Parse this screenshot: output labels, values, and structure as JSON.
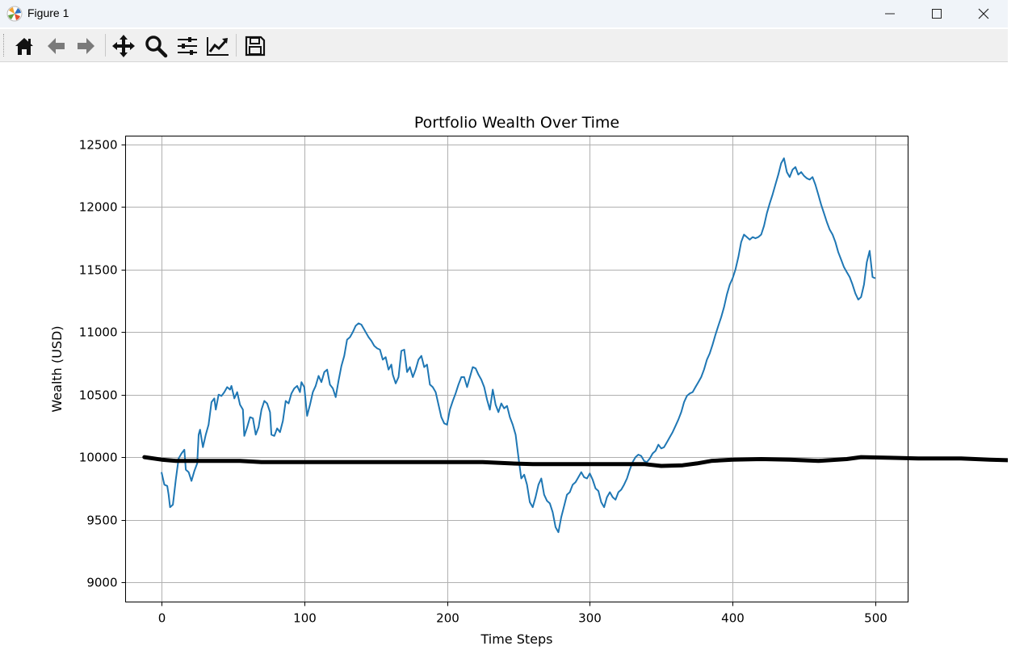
{
  "window": {
    "title": "Figure 1",
    "controls": [
      "minimize",
      "maximize",
      "close"
    ]
  },
  "toolbar": {
    "items": [
      "home-icon",
      "back-arrow-icon",
      "forward-arrow-icon",
      "pan-icon",
      "zoom-icon",
      "configure-subplots-icon",
      "edit-axis-icon",
      "save-icon"
    ]
  },
  "colors": {
    "series": "#1f77b4",
    "overlay": "#000000",
    "grid": "#b0b0b0"
  },
  "chart_data": {
    "type": "line",
    "title": "Portfolio Wealth Over Time",
    "xlabel": "Time Steps",
    "ylabel": "Wealth (USD)",
    "xlim": [
      -25,
      525
    ],
    "ylim": [
      8850,
      12570
    ],
    "xticks": [
      0,
      100,
      200,
      300,
      400,
      500
    ],
    "yticks": [
      9000,
      9500,
      10000,
      10500,
      11000,
      11500,
      12000,
      12500
    ],
    "grid": true,
    "series": [
      {
        "color": "#1f77b4",
        "anchors": [
          [
            0,
            9880
          ],
          [
            2,
            9780
          ],
          [
            4,
            9770
          ],
          [
            5,
            9700
          ],
          [
            6,
            9600
          ],
          [
            8,
            9620
          ],
          [
            10,
            9820
          ],
          [
            12,
            9990
          ],
          [
            14,
            10030
          ],
          [
            16,
            10060
          ],
          [
            17,
            9900
          ],
          [
            19,
            9880
          ],
          [
            21,
            9810
          ],
          [
            23,
            9890
          ],
          [
            25,
            9950
          ],
          [
            26,
            10180
          ],
          [
            27,
            10220
          ],
          [
            29,
            10080
          ],
          [
            31,
            10180
          ],
          [
            33,
            10260
          ],
          [
            35,
            10440
          ],
          [
            37,
            10470
          ],
          [
            38,
            10380
          ],
          [
            40,
            10500
          ],
          [
            42,
            10490
          ],
          [
            44,
            10520
          ],
          [
            46,
            10560
          ],
          [
            48,
            10540
          ],
          [
            49,
            10570
          ],
          [
            51,
            10470
          ],
          [
            53,
            10520
          ],
          [
            55,
            10420
          ],
          [
            57,
            10380
          ],
          [
            58,
            10170
          ],
          [
            60,
            10240
          ],
          [
            62,
            10320
          ],
          [
            64,
            10310
          ],
          [
            66,
            10180
          ],
          [
            68,
            10240
          ],
          [
            70,
            10380
          ],
          [
            72,
            10450
          ],
          [
            74,
            10430
          ],
          [
            76,
            10360
          ],
          [
            77,
            10180
          ],
          [
            79,
            10170
          ],
          [
            81,
            10230
          ],
          [
            83,
            10200
          ],
          [
            85,
            10290
          ],
          [
            87,
            10450
          ],
          [
            89,
            10430
          ],
          [
            91,
            10510
          ],
          [
            93,
            10550
          ],
          [
            95,
            10570
          ],
          [
            97,
            10520
          ],
          [
            98,
            10600
          ],
          [
            100,
            10560
          ],
          [
            102,
            10330
          ],
          [
            104,
            10420
          ],
          [
            106,
            10520
          ],
          [
            108,
            10570
          ],
          [
            110,
            10650
          ],
          [
            112,
            10600
          ],
          [
            114,
            10680
          ],
          [
            116,
            10700
          ],
          [
            118,
            10580
          ],
          [
            120,
            10550
          ],
          [
            122,
            10480
          ],
          [
            124,
            10610
          ],
          [
            126,
            10730
          ],
          [
            128,
            10810
          ],
          [
            130,
            10940
          ],
          [
            132,
            10960
          ],
          [
            134,
            11000
          ],
          [
            136,
            11050
          ],
          [
            138,
            11070
          ],
          [
            140,
            11060
          ],
          [
            142,
            11020
          ],
          [
            143,
            11000
          ],
          [
            145,
            10960
          ],
          [
            147,
            10930
          ],
          [
            149,
            10890
          ],
          [
            151,
            10870
          ],
          [
            153,
            10860
          ],
          [
            155,
            10780
          ],
          [
            157,
            10800
          ],
          [
            159,
            10700
          ],
          [
            161,
            10740
          ],
          [
            162,
            10660
          ],
          [
            164,
            10590
          ],
          [
            166,
            10640
          ],
          [
            168,
            10850
          ],
          [
            170,
            10860
          ],
          [
            172,
            10680
          ],
          [
            174,
            10720
          ],
          [
            176,
            10640
          ],
          [
            178,
            10700
          ],
          [
            180,
            10780
          ],
          [
            182,
            10810
          ],
          [
            184,
            10720
          ],
          [
            186,
            10740
          ],
          [
            188,
            10580
          ],
          [
            190,
            10560
          ],
          [
            192,
            10520
          ],
          [
            194,
            10420
          ],
          [
            196,
            10320
          ],
          [
            198,
            10270
          ],
          [
            200,
            10260
          ],
          [
            202,
            10380
          ],
          [
            204,
            10450
          ],
          [
            206,
            10510
          ],
          [
            208,
            10580
          ],
          [
            210,
            10640
          ],
          [
            212,
            10640
          ],
          [
            214,
            10560
          ],
          [
            216,
            10640
          ],
          [
            218,
            10720
          ],
          [
            220,
            10710
          ],
          [
            222,
            10660
          ],
          [
            224,
            10620
          ],
          [
            226,
            10560
          ],
          [
            228,
            10460
          ],
          [
            230,
            10380
          ],
          [
            232,
            10540
          ],
          [
            234,
            10420
          ],
          [
            236,
            10360
          ],
          [
            238,
            10430
          ],
          [
            240,
            10390
          ],
          [
            242,
            10410
          ],
          [
            244,
            10320
          ],
          [
            246,
            10260
          ],
          [
            248,
            10180
          ],
          [
            250,
            10000
          ],
          [
            252,
            9830
          ],
          [
            254,
            9860
          ],
          [
            256,
            9780
          ],
          [
            258,
            9640
          ],
          [
            260,
            9600
          ],
          [
            262,
            9680
          ],
          [
            264,
            9780
          ],
          [
            266,
            9830
          ],
          [
            268,
            9700
          ],
          [
            270,
            9650
          ],
          [
            272,
            9630
          ],
          [
            274,
            9560
          ],
          [
            276,
            9440
          ],
          [
            278,
            9400
          ],
          [
            280,
            9520
          ],
          [
            282,
            9610
          ],
          [
            284,
            9700
          ],
          [
            286,
            9720
          ],
          [
            288,
            9780
          ],
          [
            290,
            9800
          ],
          [
            292,
            9840
          ],
          [
            294,
            9880
          ],
          [
            296,
            9840
          ],
          [
            298,
            9830
          ],
          [
            300,
            9870
          ],
          [
            302,
            9820
          ],
          [
            304,
            9750
          ],
          [
            306,
            9730
          ],
          [
            308,
            9640
          ],
          [
            310,
            9600
          ],
          [
            312,
            9680
          ],
          [
            314,
            9720
          ],
          [
            316,
            9680
          ],
          [
            318,
            9660
          ],
          [
            320,
            9720
          ],
          [
            322,
            9740
          ],
          [
            324,
            9780
          ],
          [
            326,
            9830
          ],
          [
            328,
            9900
          ],
          [
            330,
            9960
          ],
          [
            332,
            10000
          ],
          [
            334,
            10020
          ],
          [
            336,
            10010
          ],
          [
            338,
            9970
          ],
          [
            340,
            9960
          ],
          [
            342,
            9990
          ],
          [
            344,
            10030
          ],
          [
            346,
            10050
          ],
          [
            348,
            10100
          ],
          [
            350,
            10070
          ],
          [
            352,
            10080
          ],
          [
            354,
            10120
          ],
          [
            356,
            10160
          ],
          [
            358,
            10200
          ],
          [
            360,
            10250
          ],
          [
            362,
            10300
          ],
          [
            364,
            10360
          ],
          [
            366,
            10440
          ],
          [
            368,
            10490
          ],
          [
            370,
            10510
          ],
          [
            372,
            10520
          ],
          [
            374,
            10560
          ],
          [
            376,
            10600
          ],
          [
            378,
            10640
          ],
          [
            380,
            10700
          ],
          [
            382,
            10780
          ],
          [
            384,
            10830
          ],
          [
            386,
            10900
          ],
          [
            388,
            10980
          ],
          [
            390,
            11050
          ],
          [
            392,
            11120
          ],
          [
            394,
            11200
          ],
          [
            396,
            11300
          ],
          [
            398,
            11380
          ],
          [
            400,
            11430
          ],
          [
            402,
            11500
          ],
          [
            404,
            11600
          ],
          [
            406,
            11720
          ],
          [
            408,
            11780
          ],
          [
            410,
            11760
          ],
          [
            412,
            11740
          ],
          [
            414,
            11760
          ],
          [
            416,
            11750
          ],
          [
            418,
            11760
          ],
          [
            420,
            11780
          ],
          [
            422,
            11850
          ],
          [
            424,
            11950
          ],
          [
            426,
            12030
          ],
          [
            428,
            12100
          ],
          [
            430,
            12180
          ],
          [
            432,
            12260
          ],
          [
            434,
            12350
          ],
          [
            436,
            12390
          ],
          [
            438,
            12280
          ],
          [
            440,
            12240
          ],
          [
            442,
            12300
          ],
          [
            444,
            12320
          ],
          [
            446,
            12260
          ],
          [
            448,
            12280
          ],
          [
            450,
            12250
          ],
          [
            452,
            12230
          ],
          [
            454,
            12220
          ],
          [
            456,
            12240
          ],
          [
            458,
            12180
          ],
          [
            460,
            12100
          ],
          [
            462,
            12020
          ],
          [
            464,
            11950
          ],
          [
            466,
            11880
          ],
          [
            468,
            11820
          ],
          [
            470,
            11780
          ],
          [
            472,
            11720
          ],
          [
            474,
            11640
          ],
          [
            476,
            11580
          ],
          [
            478,
            11520
          ],
          [
            480,
            11480
          ],
          [
            482,
            11440
          ],
          [
            484,
            11380
          ],
          [
            486,
            11310
          ],
          [
            488,
            11260
          ],
          [
            490,
            11280
          ],
          [
            492,
            11380
          ],
          [
            494,
            11560
          ],
          [
            496,
            11650
          ],
          [
            498,
            11440
          ],
          [
            500,
            11430
          ]
        ]
      }
    ],
    "overlay": {
      "color": "#000000",
      "anchors": [
        [
          -12,
          10000
        ],
        [
          0,
          9980
        ],
        [
          10,
          9970
        ],
        [
          30,
          9970
        ],
        [
          55,
          9970
        ],
        [
          70,
          9960
        ],
        [
          100,
          9960
        ],
        [
          150,
          9960
        ],
        [
          200,
          9960
        ],
        [
          225,
          9960
        ],
        [
          245,
          9950
        ],
        [
          260,
          9945
        ],
        [
          300,
          9945
        ],
        [
          338,
          9945
        ],
        [
          350,
          9930
        ],
        [
          365,
          9935
        ],
        [
          375,
          9950
        ],
        [
          385,
          9970
        ],
        [
          400,
          9980
        ],
        [
          420,
          9985
        ],
        [
          440,
          9980
        ],
        [
          460,
          9970
        ],
        [
          480,
          9985
        ],
        [
          490,
          10000
        ],
        [
          510,
          9995
        ],
        [
          530,
          9990
        ],
        [
          560,
          9990
        ],
        [
          580,
          9980
        ],
        [
          595,
          9975
        ]
      ]
    }
  }
}
